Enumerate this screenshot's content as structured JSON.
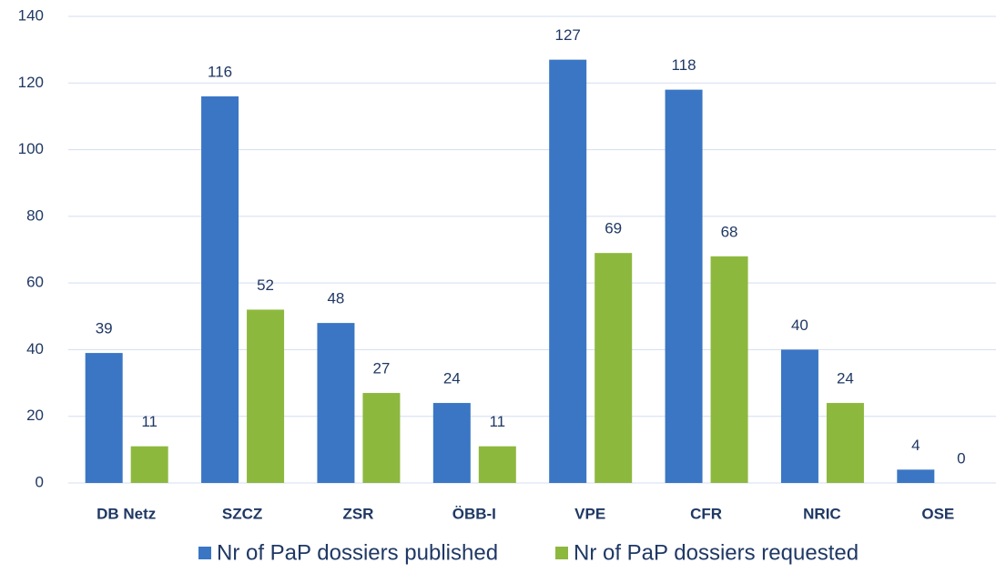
{
  "chart_data": {
    "type": "bar",
    "categories": [
      "DB Netz",
      "SZCZ",
      "ZSR",
      "ÖBB-I",
      "VPE",
      "CFR",
      "NRIC",
      "OSE"
    ],
    "series": [
      {
        "name": "Nr of PaP dossiers published",
        "color": "#3a76c4",
        "values": [
          39,
          116,
          48,
          24,
          127,
          118,
          40,
          4
        ]
      },
      {
        "name": "Nr of PaP dossiers requested",
        "color": "#8db83e",
        "values": [
          11,
          52,
          27,
          11,
          69,
          68,
          24,
          0
        ]
      }
    ],
    "ylim": [
      0,
      140
    ],
    "yticks": [
      0,
      20,
      40,
      60,
      80,
      100,
      120,
      140
    ],
    "grid": true,
    "legend": "bottom"
  }
}
